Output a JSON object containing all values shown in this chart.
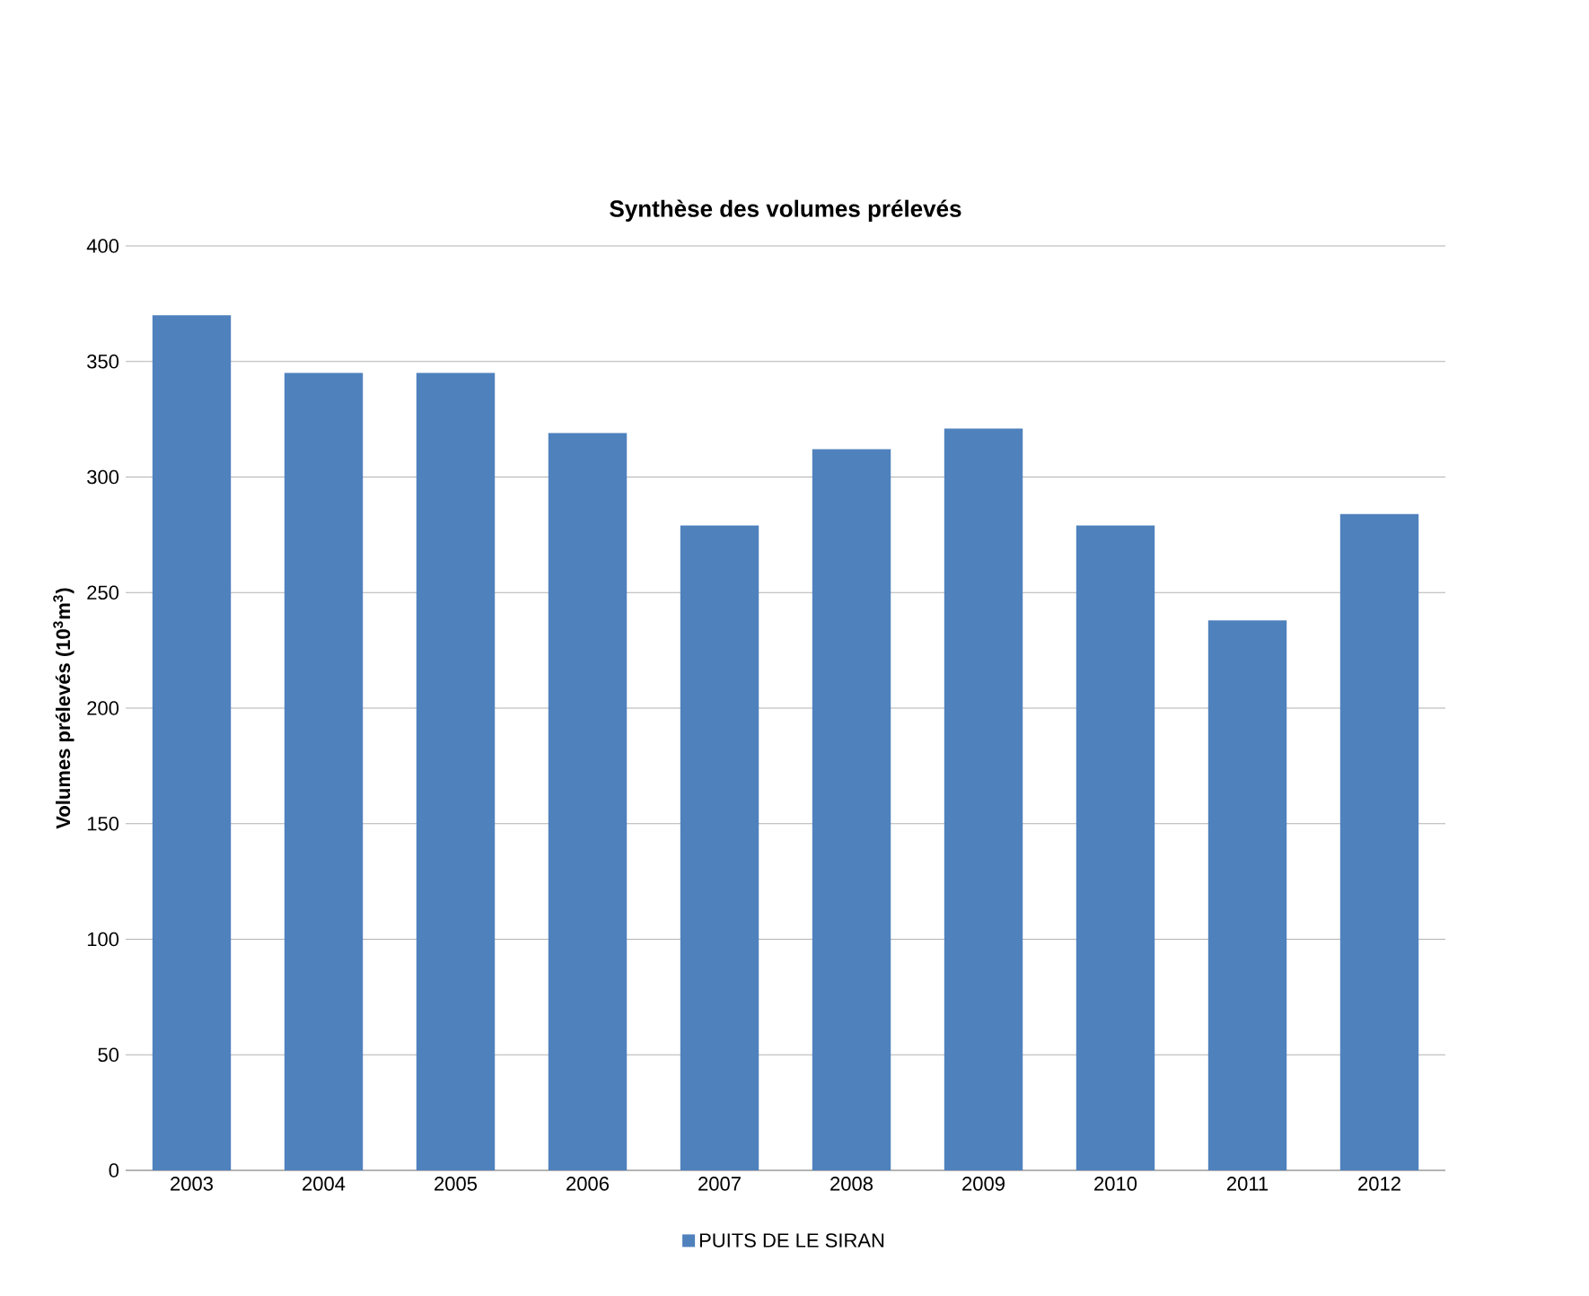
{
  "chart_data": {
    "type": "bar",
    "title": "Synthèse des volumes prélevés",
    "ylabel": "Volumes prélevés (10$^{3}$m$^{3}$)",
    "categories": [
      "2003",
      "2004",
      "2005",
      "2006",
      "2007",
      "2008",
      "2009",
      "2010",
      "2011",
      "2012"
    ],
    "series": [
      {
        "name": "PUITS DE LE SIRAN",
        "color": "#4f81bd",
        "values": [
          370,
          345,
          345,
          319,
          279,
          312,
          321,
          279,
          238,
          284
        ]
      }
    ],
    "ylim": [
      0,
      400
    ],
    "yticks": [
      0,
      50,
      100,
      150,
      200,
      250,
      300,
      350,
      400
    ],
    "grid": "y",
    "legend": "bottom"
  }
}
